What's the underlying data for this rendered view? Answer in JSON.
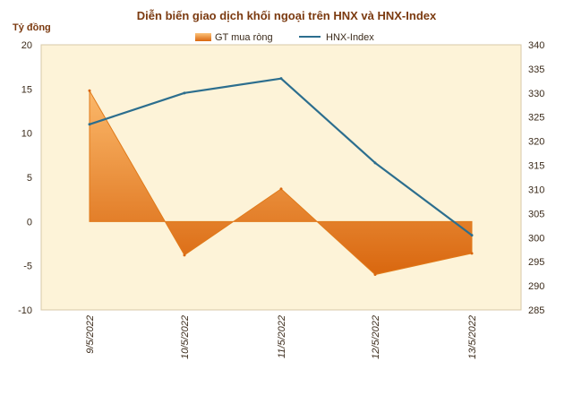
{
  "chart_data": {
    "type": "area+line",
    "title": "Diễn biến giao dịch khối ngoại trên HNX và HNX-Index",
    "y_left_label": "Tỷ đồng",
    "categories": [
      "9/5/2022",
      "10/5/2022",
      "11/5/2022",
      "12/5/2022",
      "13/5/2022"
    ],
    "y_left_ticks": [
      "20",
      "15",
      "10",
      "5",
      "0",
      "-5",
      "-10"
    ],
    "y_right_ticks": [
      "340",
      "335",
      "330",
      "325",
      "320",
      "315",
      "310",
      "305",
      "300",
      "295",
      "290",
      "285"
    ],
    "ylim_left": [
      -10,
      20
    ],
    "ylim_right": [
      285,
      340
    ],
    "series": [
      {
        "name": "GT mua ròng",
        "kind": "area",
        "axis": "left",
        "color": "#f0922c",
        "values": [
          14.8,
          -3.8,
          3.7,
          -6.0,
          -3.6
        ]
      },
      {
        "name": "HNX-Index",
        "kind": "line",
        "axis": "right",
        "color": "#2c6e8e",
        "values": [
          323.5,
          330.0,
          333.0,
          315.5,
          300.5
        ]
      }
    ],
    "legend_position": "top-center",
    "grid": false
  },
  "colors": {
    "plot_background": "#fdf3d8",
    "area_light": "#fbb86a",
    "area_dark": "#d9670f",
    "line": "#2c6e8e"
  }
}
